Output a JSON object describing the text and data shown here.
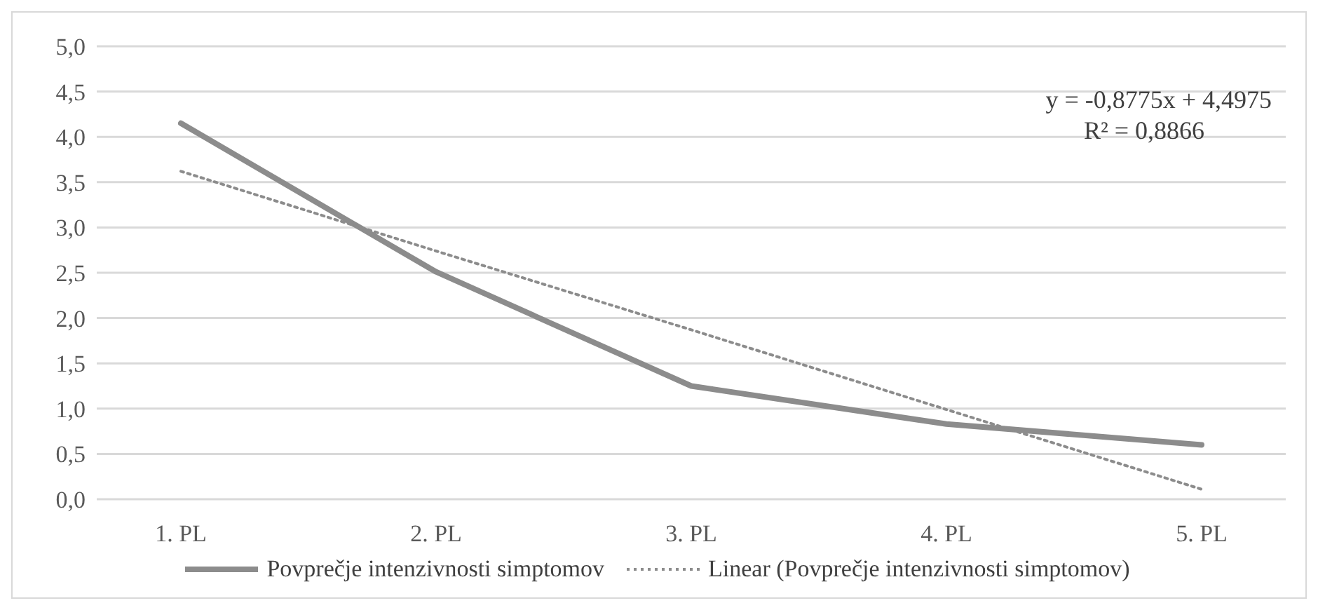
{
  "chart_data": {
    "type": "line",
    "categories": [
      "1. PL",
      "2. PL",
      "3. PL",
      "4. PL",
      "5. PL"
    ],
    "series": [
      {
        "name": "Povprečje intenzivnosti simptomov",
        "color": "#8c8c8c",
        "values": [
          4.15,
          2.51,
          1.25,
          0.83,
          0.6
        ],
        "line_style": "solid"
      },
      {
        "name": "Linear (Povprečje intenzivnosti simptomov)",
        "color": "#8c8c8c",
        "values": [
          3.62,
          2.74,
          1.87,
          0.99,
          0.11
        ],
        "line_style": "dotted"
      }
    ],
    "ylim": [
      0,
      5
    ],
    "yticks": [
      {
        "value": 0,
        "label": "0,0"
      },
      {
        "value": 0.5,
        "label": "0,5"
      },
      {
        "value": 1,
        "label": "1,0"
      },
      {
        "value": 1.5,
        "label": "1,5"
      },
      {
        "value": 2,
        "label": "2,0"
      },
      {
        "value": 2.5,
        "label": "2,5"
      },
      {
        "value": 3,
        "label": "3,0"
      },
      {
        "value": 3.5,
        "label": "3,5"
      },
      {
        "value": 4,
        "label": "4,0"
      },
      {
        "value": 4.5,
        "label": "4,5"
      },
      {
        "value": 5,
        "label": "5,0"
      }
    ],
    "grid": "y",
    "legend": "bottom",
    "marker": "none",
    "annotations": [
      "y = -0,8775x + 4,4975",
      "R² = 0,8866"
    ]
  }
}
